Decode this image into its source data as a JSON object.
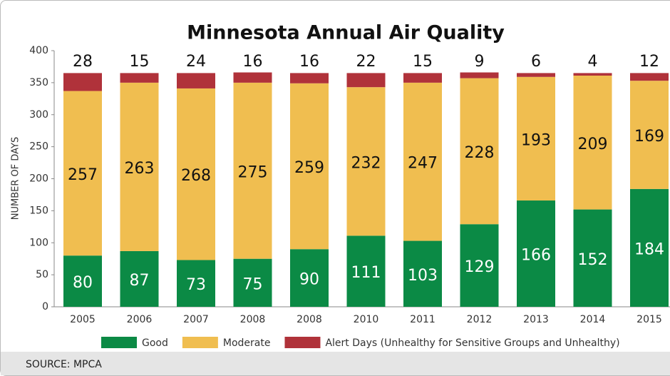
{
  "chart_data": {
    "type": "stacked_bar",
    "title": "Minnesota Annual Air Quality",
    "y_label": "NUMBER OF DAYS",
    "categories": [
      "2005",
      "2006",
      "2007",
      "2008",
      "2008",
      "2010",
      "2011",
      "2012",
      "2013",
      "2014",
      "2015"
    ],
    "series": [
      {
        "name": "Good",
        "color": "#0b8a45",
        "values": [
          80,
          87,
          73,
          75,
          90,
          111,
          103,
          129,
          166,
          152,
          184
        ]
      },
      {
        "name": "Moderate",
        "color": "#f0be50",
        "values": [
          257,
          263,
          268,
          275,
          259,
          232,
          247,
          228,
          193,
          209,
          169
        ]
      },
      {
        "name": "Alert Days (Unhealthy for Sensitive Groups and Unhealthy)",
        "color": "#b0323a",
        "values": [
          28,
          15,
          24,
          16,
          16,
          22,
          15,
          9,
          6,
          4,
          12
        ]
      }
    ],
    "ylim": [
      0,
      400
    ],
    "yticks": [
      0,
      50,
      100,
      150,
      200,
      250,
      300,
      350,
      400
    ],
    "source": "SOURCE: MPCA"
  }
}
